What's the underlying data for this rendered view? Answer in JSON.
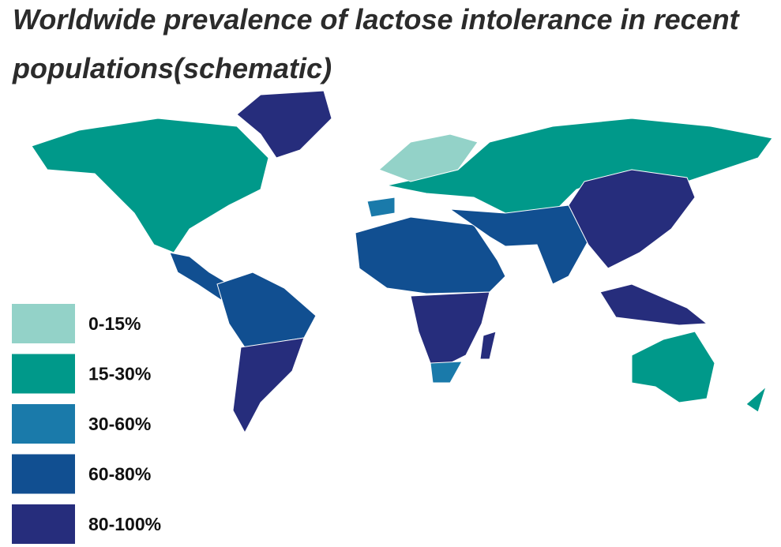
{
  "title": "Worldwide prevalence of lactose intolerance in recent populations(schematic)",
  "legend": [
    {
      "label": "0-15%",
      "color": "#93d2c8"
    },
    {
      "label": "15-30%",
      "color": "#00998a"
    },
    {
      "label": "30-60%",
      "color": "#1a7aaa"
    },
    {
      "label": "60-80%",
      "color": "#114f91"
    },
    {
      "label": "80-100%",
      "color": "#262d7c"
    }
  ]
}
